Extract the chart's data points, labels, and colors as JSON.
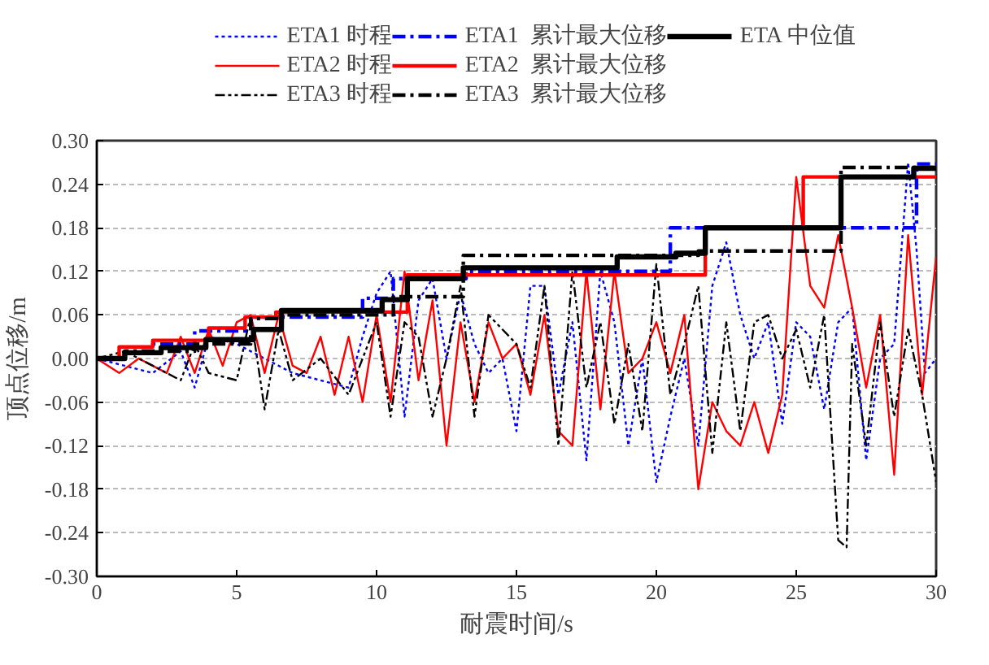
{
  "chart_data": {
    "type": "line",
    "xlabel": "耐震时间/s",
    "ylabel": "顶点位移/m",
    "xlim": [
      0,
      30
    ],
    "ylim": [
      -0.3,
      0.3
    ],
    "xticks": [
      0,
      5,
      10,
      15,
      20,
      25,
      30
    ],
    "yticks": [
      {
        "value": -0.3,
        "label": "-0.30"
      },
      {
        "value": -0.24,
        "label": "-0.24"
      },
      {
        "value": -0.18,
        "label": "-0.18"
      },
      {
        "value": -0.12,
        "label": "-0.12"
      },
      {
        "value": -0.06,
        "label": "-0.06"
      },
      {
        "value": 0,
        "label": "0.00"
      },
      {
        "value": 0.06,
        "label": "0.06"
      },
      {
        "value": 0.12,
        "label": "0.12"
      },
      {
        "value": 0.18,
        "label": "0.18"
      },
      {
        "value": 0.24,
        "label": "0.24"
      },
      {
        "value": 0.3,
        "label": "0.30"
      }
    ],
    "grid": "y",
    "legend": "top",
    "series": [
      {
        "name": "ETA1 时程",
        "color": "#0000ff",
        "line_style": "dotted",
        "x": [
          0,
          1,
          2,
          3,
          3.5,
          4,
          5,
          6,
          7,
          8,
          9,
          9.5,
          10,
          10.5,
          11,
          11.5,
          12,
          12.5,
          13,
          13.5,
          14,
          14.5,
          15,
          15.5,
          16,
          16.5,
          17,
          17.5,
          18,
          18.5,
          19,
          19.5,
          20,
          20.5,
          21,
          21.5,
          22,
          22.5,
          23,
          23.5,
          24,
          24.5,
          25,
          25.5,
          26,
          26.5,
          27,
          27.5,
          28,
          28.5,
          29,
          29.3,
          29.6,
          30
        ],
        "values": [
          0,
          -0.01,
          -0.02,
          0.01,
          -0.04,
          0.03,
          0.02,
          0.0,
          -0.02,
          -0.03,
          -0.04,
          0.03,
          0.09,
          0.12,
          -0.08,
          0.08,
          0.11,
          0.0,
          0.09,
          0.02,
          -0.02,
          0.0,
          -0.1,
          0.1,
          0.1,
          -0.05,
          0.05,
          -0.14,
          0.12,
          0.05,
          -0.12,
          0.0,
          -0.17,
          -0.08,
          0.0,
          -0.12,
          0.1,
          0.16,
          0.06,
          0.0,
          0.05,
          -0.09,
          0.05,
          0.03,
          -0.07,
          0.05,
          0.07,
          -0.14,
          0.0,
          0.02,
          0.27,
          0.15,
          -0.02,
          0.0
        ]
      },
      {
        "name": "ETA2 时程",
        "color": "#ff0000",
        "line_style": "solid",
        "x": [
          0,
          0.8,
          1.5,
          2.5,
          3,
          3.5,
          4,
          4.5,
          5,
          5.5,
          6,
          6.5,
          7,
          7.5,
          8,
          8.5,
          9,
          9.5,
          10,
          10.5,
          11,
          11.5,
          12,
          12.5,
          13,
          13.5,
          14,
          14.5,
          15,
          15.5,
          16,
          16.5,
          17,
          17.5,
          18,
          18.5,
          19,
          19.5,
          20,
          20.5,
          21,
          21.5,
          22,
          22.5,
          23,
          23.5,
          24,
          24.5,
          25,
          25.5,
          26,
          26.5,
          27,
          27.5,
          28,
          28.5,
          29,
          29.5,
          30
        ],
        "values": [
          0,
          -0.02,
          0.0,
          -0.02,
          0.03,
          -0.02,
          0.04,
          -0.01,
          0.05,
          0.06,
          -0.02,
          0.06,
          -0.01,
          -0.02,
          0.03,
          -0.05,
          0.03,
          -0.06,
          0.06,
          -0.06,
          0.12,
          -0.03,
          0.08,
          -0.12,
          0.05,
          -0.06,
          0.05,
          0.0,
          0.02,
          -0.05,
          0.06,
          -0.1,
          -0.12,
          0.12,
          -0.07,
          0.12,
          -0.02,
          0.0,
          0.05,
          -0.02,
          0.06,
          -0.18,
          -0.06,
          -0.1,
          -0.12,
          -0.06,
          -0.13,
          -0.05,
          0.25,
          0.1,
          0.07,
          0.17,
          0.07,
          -0.04,
          0.06,
          -0.16,
          0.17,
          -0.05,
          0.14
        ]
      },
      {
        "name": "ETA3 时程",
        "color": "#000000",
        "line_style": "dashdotdot",
        "x": [
          0,
          1,
          2,
          3,
          3.5,
          4,
          5,
          5.5,
          6,
          6.5,
          7,
          8,
          9,
          10,
          10.5,
          11,
          11.5,
          12,
          12.5,
          13,
          13.5,
          14,
          14.5,
          15,
          15.5,
          16,
          16.5,
          17,
          17.5,
          18,
          18.5,
          19,
          19.5,
          20,
          20.5,
          21,
          21.5,
          22,
          22.5,
          23,
          23.5,
          24,
          24.5,
          25,
          25.5,
          26,
          26.5,
          26.8,
          27,
          27.5,
          28,
          28.5,
          29,
          29.5,
          30
        ],
        "values": [
          0,
          0.01,
          -0.01,
          -0.03,
          0.02,
          -0.02,
          -0.03,
          0.06,
          -0.07,
          0.04,
          -0.03,
          0.0,
          -0.05,
          0.05,
          -0.08,
          0.05,
          0.03,
          -0.08,
          0.0,
          0.1,
          -0.08,
          0.06,
          0.04,
          0.02,
          -0.04,
          0.1,
          -0.12,
          0.12,
          -0.04,
          0.05,
          -0.09,
          0.02,
          -0.1,
          0.13,
          -0.05,
          0.02,
          0.1,
          -0.13,
          0.05,
          -0.1,
          0.05,
          0.06,
          0.0,
          0.04,
          -0.04,
          0.06,
          -0.25,
          -0.26,
          0.02,
          -0.12,
          0.05,
          -0.08,
          0.04,
          -0.05,
          -0.17
        ]
      },
      {
        "name": "ETA1  累计最大位移",
        "type": "step",
        "color": "#0000ff",
        "line_style": "dashdot",
        "x": [
          0,
          1,
          2,
          3.5,
          5.5,
          9.5,
          10.6,
          13.2,
          20.5,
          29.3,
          30
        ],
        "values": [
          0,
          0.01,
          0.02,
          0.038,
          0.057,
          0.083,
          0.11,
          0.12,
          0.18,
          0.268,
          0.268
        ]
      },
      {
        "name": "ETA2  累计最大位移",
        "type": "step",
        "color": "#ff0000",
        "line_style": "solid",
        "x": [
          0,
          0.8,
          2,
          4,
          5.3,
          6.4,
          11.1,
          21.75,
          25.25,
          30
        ],
        "values": [
          0,
          0.016,
          0.025,
          0.042,
          0.057,
          0.064,
          0.115,
          0.18,
          0.25,
          0.25
        ]
      },
      {
        "name": "ETA3  累计最大位移",
        "type": "step",
        "color": "#000000",
        "line_style": "dashdot",
        "x": [
          0,
          1,
          3.5,
          5.5,
          6.5,
          10.6,
          13.1,
          21.5,
          26.6,
          30
        ],
        "values": [
          0,
          0.01,
          0.02,
          0.055,
          0.06,
          0.085,
          0.142,
          0.148,
          0.263,
          0.263
        ]
      },
      {
        "name": "ETA 中位值",
        "type": "step",
        "color": "#000000",
        "line_style": "solid",
        "x": [
          0,
          1,
          2.3,
          3.9,
          5.6,
          6.6,
          10.2,
          11.1,
          13.1,
          18.6,
          20.7,
          21.75,
          26.6,
          29.2,
          30
        ],
        "values": [
          0,
          0.008,
          0.015,
          0.026,
          0.04,
          0.066,
          0.081,
          0.11,
          0.125,
          0.14,
          0.145,
          0.18,
          0.25,
          0.262,
          0.262
        ]
      }
    ]
  }
}
